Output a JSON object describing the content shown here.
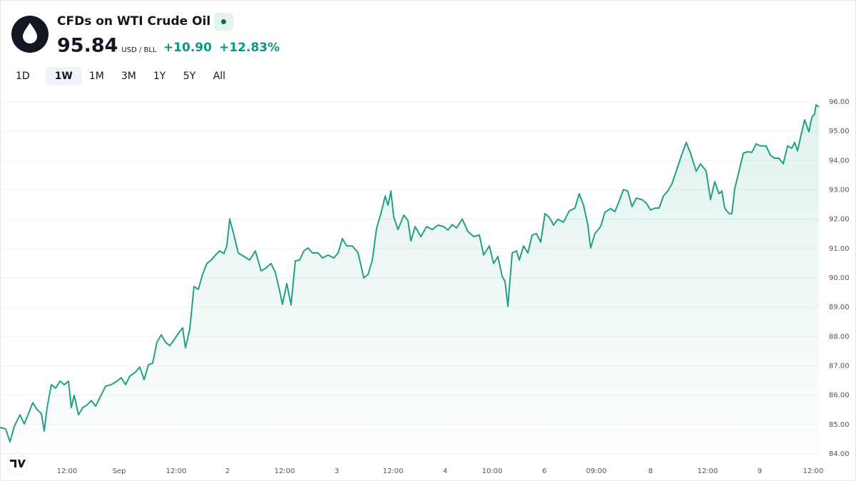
{
  "header": {
    "title": "CFDs on WTI Crude Oil",
    "price": "95.84",
    "unit": "USD / BLL",
    "change": "+10.90",
    "change_percent": "+12.83%"
  },
  "ranges": [
    "1D",
    "1W",
    "1M",
    "3M",
    "1Y",
    "5Y",
    "All"
  ],
  "active_range": 1,
  "chart_data": {
    "type": "line",
    "color": "#22a086",
    "x": [
      0,
      8,
      14,
      20,
      28,
      34,
      40,
      46,
      52,
      58,
      62,
      66,
      72,
      78,
      84,
      90,
      96,
      100,
      104,
      110,
      116,
      122,
      128,
      134,
      140,
      148,
      156,
      164,
      170,
      176,
      182,
      190,
      196,
      202,
      208,
      214,
      220,
      226,
      232,
      238,
      244,
      250,
      256,
      260,
      266,
      272,
      278,
      284,
      290,
      296,
      302,
      308,
      314,
      318,
      322,
      328,
      334,
      342,
      350,
      358,
      366,
      372,
      380,
      386,
      392,
      396,
      402,
      408,
      414,
      420,
      426,
      432,
      438,
      446,
      452,
      460,
      468,
      474,
      480,
      486,
      494,
      502,
      510,
      516,
      522,
      528,
      534,
      540,
      544,
      548,
      552,
      558,
      566,
      572,
      576,
      582,
      590,
      598,
      606,
      614,
      622,
      628,
      634,
      640,
      648,
      656,
      664,
      672,
      678,
      686,
      692,
      698,
      704,
      708,
      712,
      718,
      724,
      728,
      734,
      740,
      746,
      752,
      758,
      764,
      770,
      776,
      782,
      790,
      798,
      806,
      812,
      818,
      824,
      828,
      834,
      842,
      848,
      856,
      862,
      868,
      874,
      880,
      886,
      892,
      900,
      906,
      912,
      918,
      924,
      930,
      936,
      942,
      948,
      954,
      962,
      968,
      976,
      982,
      990,
      996,
      1002,
      1008,
      1012,
      1016,
      1022,
      1026,
      1030,
      1036,
      1042,
      1048,
      1054,
      1060,
      1066,
      1074,
      1080,
      1086,
      1092,
      1098,
      1104,
      1110,
      1114,
      1118,
      1124,
      1128,
      1134,
      1138,
      1142,
      1144,
      1148
    ],
    "values": [
      84.9,
      84.85,
      84.41,
      84.94,
      85.33,
      85.02,
      85.38,
      85.75,
      85.51,
      85.38,
      84.78,
      85.58,
      86.36,
      86.24,
      86.48,
      86.36,
      86.48,
      85.58,
      86.0,
      85.33,
      85.58,
      85.67,
      85.82,
      85.63,
      85.92,
      86.31,
      86.36,
      86.48,
      86.6,
      86.36,
      86.65,
      86.79,
      86.96,
      86.53,
      87.04,
      87.09,
      87.81,
      88.06,
      87.81,
      87.69,
      87.89,
      88.11,
      88.3,
      87.62,
      88.25,
      89.71,
      89.61,
      90.12,
      90.49,
      90.61,
      90.78,
      90.92,
      90.83,
      91.09,
      92.01,
      91.46,
      90.85,
      90.73,
      90.61,
      90.92,
      90.24,
      90.32,
      90.49,
      90.19,
      89.56,
      89.1,
      89.81,
      89.08,
      90.58,
      90.61,
      90.92,
      91.02,
      90.85,
      90.85,
      90.68,
      90.78,
      90.68,
      90.85,
      91.34,
      91.09,
      91.09,
      90.85,
      90.0,
      90.12,
      90.61,
      91.7,
      92.19,
      92.79,
      92.48,
      92.96,
      92.07,
      91.65,
      92.14,
      91.95,
      91.26,
      91.75,
      91.41,
      91.75,
      91.65,
      91.8,
      91.75,
      91.63,
      91.82,
      91.7,
      92.01,
      91.58,
      91.41,
      91.46,
      90.78,
      91.09,
      90.49,
      90.73,
      90.05,
      89.88,
      89.03,
      90.85,
      90.92,
      90.61,
      91.09,
      90.85,
      91.46,
      91.51,
      91.22,
      92.19,
      92.07,
      91.8,
      92.0,
      91.9,
      92.28,
      92.38,
      92.87,
      92.48,
      91.82,
      91.02,
      91.51,
      91.75,
      92.24,
      92.36,
      92.26,
      92.62,
      93.01,
      92.96,
      92.43,
      92.72,
      92.67,
      92.55,
      92.31,
      92.38,
      92.38,
      92.79,
      92.96,
      93.21,
      93.64,
      94.08,
      94.62,
      94.25,
      93.64,
      93.89,
      93.64,
      92.67,
      93.28,
      92.87,
      92.96,
      92.38,
      92.19,
      92.19,
      93.04,
      93.64,
      94.25,
      94.3,
      94.28,
      94.57,
      94.5,
      94.5,
      94.18,
      94.08,
      94.08,
      93.89,
      94.5,
      94.42,
      94.62,
      94.33,
      94.98,
      95.39,
      94.98,
      95.47,
      95.59,
      95.9,
      95.83
    ],
    "xlim": [
      0,
      1148
    ],
    "xticks": [
      {
        "value": 94,
        "label": "12:00"
      },
      {
        "value": 167,
        "label": "Sep"
      },
      {
        "value": 247,
        "label": "12:00"
      },
      {
        "value": 319,
        "label": "2"
      },
      {
        "value": 399,
        "label": "12:00"
      },
      {
        "value": 472,
        "label": "3"
      },
      {
        "value": 551,
        "label": "12:00"
      },
      {
        "value": 624,
        "label": "4"
      },
      {
        "value": 690,
        "label": "10:00"
      },
      {
        "value": 763,
        "label": "6"
      },
      {
        "value": 836,
        "label": "09:00"
      },
      {
        "value": 912,
        "label": "8"
      },
      {
        "value": 992,
        "label": "12:00"
      },
      {
        "value": 1065,
        "label": "9"
      },
      {
        "value": 1140,
        "label": "12:00"
      }
    ],
    "ylim": [
      84,
      96
    ],
    "yticks": [
      {
        "value": 84,
        "label": "84.00"
      },
      {
        "value": 85,
        "label": "85.00"
      },
      {
        "value": 86,
        "label": "86.00"
      },
      {
        "value": 87,
        "label": "87.00"
      },
      {
        "value": 88,
        "label": "88.00"
      },
      {
        "value": 89,
        "label": "89.00"
      },
      {
        "value": 90,
        "label": "90.00"
      },
      {
        "value": 91,
        "label": "91.00"
      },
      {
        "value": 92,
        "label": "92.00"
      },
      {
        "value": 93,
        "label": "93.00"
      },
      {
        "value": 94,
        "label": "94.00"
      },
      {
        "value": 95,
        "label": "95.00"
      },
      {
        "value": 96,
        "label": "96.00"
      }
    ],
    "grid": true
  }
}
